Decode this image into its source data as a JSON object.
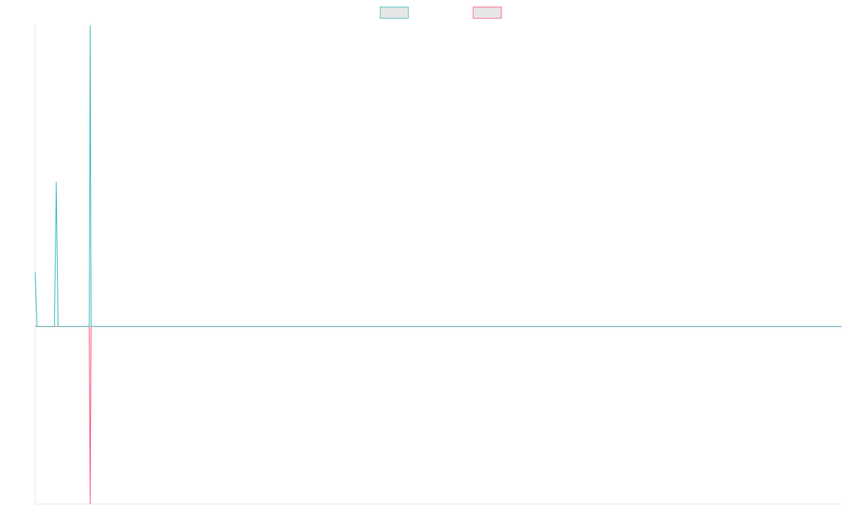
{
  "chart_data": {
    "type": "line",
    "x": [
      0,
      1,
      10.5,
      11.5,
      12.5,
      29.5,
      30,
      30.5,
      440
    ],
    "xlim": [
      0,
      440
    ],
    "ylim": [
      -59,
      100
    ],
    "series": [
      {
        "color": "#ff6384",
        "values": [
          0,
          0,
          0,
          0,
          0,
          0,
          -59,
          0,
          0
        ]
      },
      {
        "color": "#4bc0c0",
        "values": [
          18,
          0,
          0,
          48,
          0,
          0,
          100,
          0,
          0
        ]
      }
    ],
    "legend": "top",
    "grid": false
  }
}
